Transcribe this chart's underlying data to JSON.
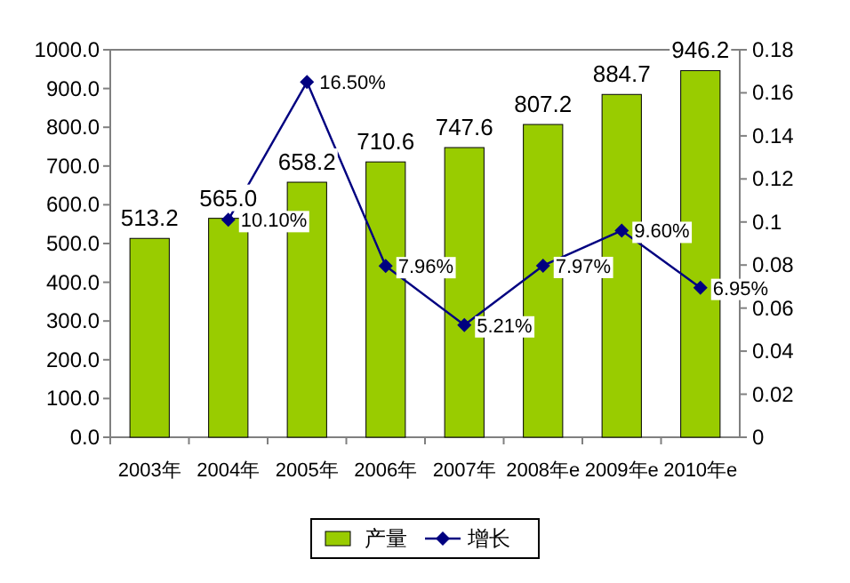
{
  "chart_data": {
    "type": "bar",
    "categories": [
      "2003年",
      "2004年",
      "2005年",
      "2006年",
      "2007年",
      "2008年e",
      "2009年e",
      "2010年e"
    ],
    "series": [
      {
        "name": "产量",
        "color": "#99cc00",
        "values": [
          513.2,
          565.0,
          658.2,
          710.6,
          747.6,
          807.2,
          884.7,
          946.2
        ],
        "value_labels": [
          "513.2",
          "565.0",
          "658.2",
          "710.6",
          "747.6",
          "807.2",
          "884.7",
          "946.2"
        ]
      },
      {
        "name": "增长",
        "type": "line",
        "axis": "y2",
        "color": "#000080",
        "marker": "diamond",
        "values": [
          null,
          0.101,
          0.165,
          0.0796,
          0.0521,
          0.0797,
          0.096,
          0.0695
        ],
        "value_labels": [
          null,
          "10.10%",
          "16.50%",
          "7.96%",
          "5.21%",
          "7.97%",
          "9.60%",
          "6.95%"
        ]
      }
    ],
    "ylim": [
      0,
      1000
    ],
    "yticks": [
      {
        "value": 0,
        "label": "0.0"
      },
      {
        "value": 100,
        "label": "100.0"
      },
      {
        "value": 200,
        "label": "200.0"
      },
      {
        "value": 300,
        "label": "300.0"
      },
      {
        "value": 400,
        "label": "400.0"
      },
      {
        "value": 500,
        "label": "500.0"
      },
      {
        "value": 600,
        "label": "600.0"
      },
      {
        "value": 700,
        "label": "700.0"
      },
      {
        "value": 800,
        "label": "800.0"
      },
      {
        "value": 900,
        "label": "900.0"
      },
      {
        "value": 1000,
        "label": "1000.0"
      }
    ],
    "y2lim": [
      0,
      0.18
    ],
    "y2ticks": [
      0,
      0.02,
      0.04,
      0.06,
      0.08,
      0.1,
      0.12,
      0.14,
      0.16,
      0.18
    ],
    "legend": "bottom"
  }
}
